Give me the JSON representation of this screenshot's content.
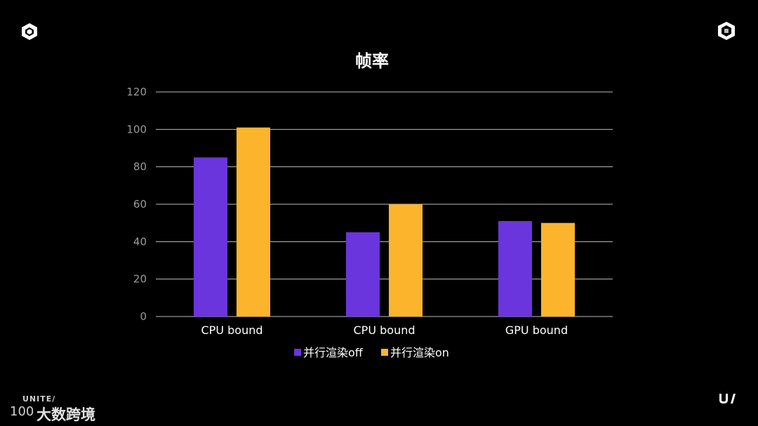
{
  "brand": {
    "unite_label": "UNITE/",
    "cjk_label": "大数跨境",
    "ring_label": "100"
  },
  "chart_data": {
    "type": "bar",
    "title": "帧率",
    "categories": [
      "CPU bound",
      "CPU bound",
      "GPU bound"
    ],
    "series": [
      {
        "name": "并行渲染off",
        "values": [
          85,
          45,
          51
        ],
        "color": "#6a35dc"
      },
      {
        "name": "并行渲染on",
        "values": [
          101,
          60,
          50
        ],
        "color": "#fbb42c"
      }
    ],
    "ylim": [
      0,
      120
    ],
    "yticks": [
      0,
      20,
      40,
      60,
      80,
      100,
      120
    ],
    "grid": true,
    "legend_position": "bottom"
  }
}
